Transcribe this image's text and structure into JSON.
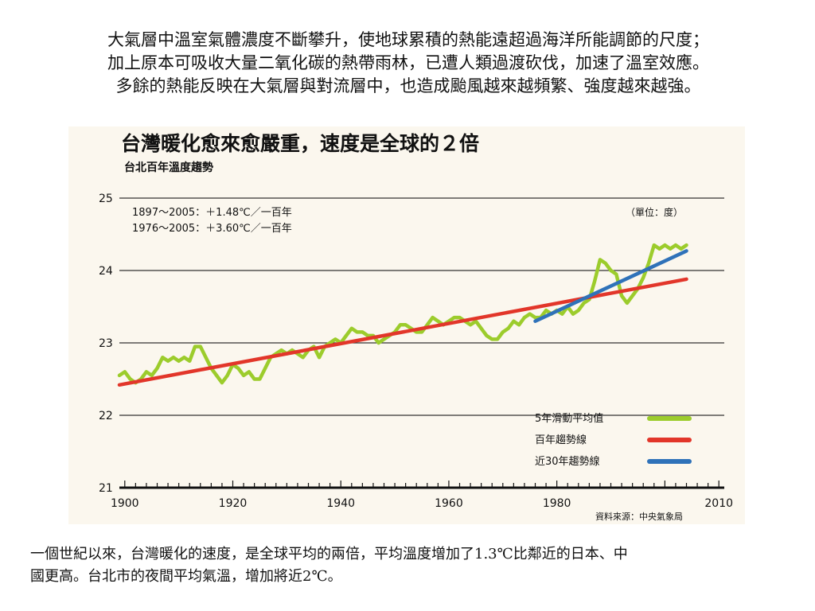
{
  "slide": {
    "top_lines": [
      "大氣層中溫室氣體濃度不斷攀升，使地球累積的熱能遠超過海洋所能調節的尺度；",
      "加上原本可吸收大量二氧化碳的熱帶雨林，已遭人類過渡砍伐，加速了溫室效應。",
      "多餘的熱能反映在大氣層與對流層中，也造成颱風越來越頻繁、強度越來越強。"
    ],
    "bottom_lines": [
      "一個世紀以來，台灣暖化的速度，是全球平均的兩倍，平均溫度增加了1.3℃比鄰近的日本、中",
      "國更高。台北市的夜間平均氣溫，增加將近2℃。"
    ]
  },
  "chart_data": {
    "type": "line",
    "title": "台灣暖化愈來愈嚴重，速度是全球的２倍",
    "subtitle": "台北百年溫度趨勢",
    "annotation_1": "1897～2005：＋1.48℃／一百年",
    "annotation_2": "1976～2005：＋3.60℃／一百年",
    "unit_label": "（單位：度）",
    "source": "資料來源：中央氣象局",
    "xlim": [
      1899,
      2011
    ],
    "ylim": [
      21,
      25
    ],
    "x_ticks": [
      1900,
      1920,
      1940,
      1960,
      1980,
      2010
    ],
    "y_ticks": [
      21,
      22,
      23,
      24,
      25
    ],
    "grid": true,
    "legend_position": "bottom-right",
    "series": [
      {
        "name": "5年滑動平均值",
        "color": "#9ccc2c",
        "x": [
          1899,
          1900,
          1901,
          1902,
          1903,
          1904,
          1905,
          1906,
          1907,
          1908,
          1909,
          1910,
          1911,
          1912,
          1913,
          1914,
          1915,
          1916,
          1917,
          1918,
          1919,
          1920,
          1921,
          1922,
          1923,
          1924,
          1925,
          1926,
          1927,
          1928,
          1929,
          1930,
          1931,
          1932,
          1933,
          1934,
          1935,
          1936,
          1937,
          1938,
          1939,
          1940,
          1941,
          1942,
          1943,
          1944,
          1945,
          1946,
          1947,
          1948,
          1949,
          1950,
          1951,
          1952,
          1953,
          1954,
          1955,
          1956,
          1957,
          1958,
          1959,
          1960,
          1961,
          1962,
          1963,
          1964,
          1965,
          1966,
          1967,
          1968,
          1969,
          1970,
          1971,
          1972,
          1973,
          1974,
          1975,
          1976,
          1977,
          1978,
          1979,
          1980,
          1981,
          1982,
          1983,
          1984,
          1985,
          1986,
          1987,
          1988,
          1989,
          1990,
          1991,
          1992,
          1993,
          1994,
          1995,
          1996,
          1997,
          1998,
          1999,
          2000,
          2001,
          2002,
          2003,
          2004
        ],
        "values": [
          22.55,
          22.6,
          22.5,
          22.45,
          22.5,
          22.6,
          22.55,
          22.65,
          22.8,
          22.75,
          22.8,
          22.75,
          22.8,
          22.75,
          22.95,
          22.95,
          22.8,
          22.65,
          22.55,
          22.45,
          22.55,
          22.7,
          22.65,
          22.55,
          22.6,
          22.5,
          22.5,
          22.65,
          22.8,
          22.85,
          22.9,
          22.85,
          22.9,
          22.85,
          22.8,
          22.9,
          22.95,
          22.8,
          22.95,
          23.0,
          23.05,
          23.0,
          23.1,
          23.2,
          23.15,
          23.15,
          23.1,
          23.1,
          23.0,
          23.05,
          23.1,
          23.15,
          23.25,
          23.25,
          23.2,
          23.15,
          23.15,
          23.25,
          23.35,
          23.3,
          23.25,
          23.3,
          23.35,
          23.35,
          23.3,
          23.25,
          23.3,
          23.2,
          23.1,
          23.05,
          23.05,
          23.15,
          23.2,
          23.3,
          23.25,
          23.35,
          23.4,
          23.35,
          23.35,
          23.45,
          23.4,
          23.45,
          23.4,
          23.5,
          23.4,
          23.45,
          23.55,
          23.6,
          23.85,
          24.15,
          24.1,
          24.0,
          23.95,
          23.65,
          23.55,
          23.65,
          23.75,
          23.9,
          24.1,
          24.35,
          24.3,
          24.35,
          24.3,
          24.35,
          24.3,
          24.35
        ]
      },
      {
        "name": "百年趨勢線",
        "color": "#e2362a",
        "x": [
          1899,
          2004
        ],
        "values": [
          22.42,
          23.88
        ]
      },
      {
        "name": "近30年趨勢線",
        "color": "#2f72b9",
        "x": [
          1976,
          2004
        ],
        "values": [
          23.3,
          24.27
        ]
      }
    ]
  }
}
